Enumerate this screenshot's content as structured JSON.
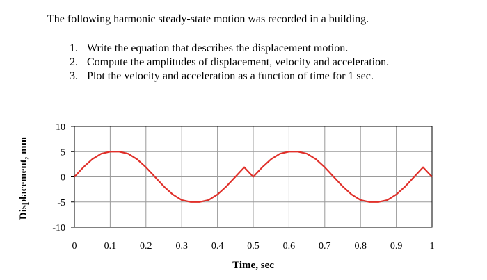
{
  "problem": {
    "intro": "The following harmonic steady-state motion was recorded in a building.",
    "tasks": [
      {
        "num": "1.",
        "text": "Write the equation that describes the displacement motion."
      },
      {
        "num": "2.",
        "text": "Compute the amplitudes of displacement, velocity and acceleration."
      },
      {
        "num": "3.",
        "text": "Plot the velocity and acceleration as a function of time for 1 sec."
      }
    ]
  },
  "chart_data": {
    "type": "line",
    "title": "",
    "xlabel": "Time, sec",
    "ylabel": "Displacement, mm",
    "xlim": [
      0,
      1
    ],
    "ylim": [
      -10,
      10
    ],
    "xticks": [
      0,
      0.1,
      0.2,
      0.3,
      0.4,
      0.5,
      0.6,
      0.7,
      0.8,
      0.9,
      1
    ],
    "xtick_labels": [
      "0",
      "0.1",
      "0.2",
      "0.3",
      "0.4",
      "0.5",
      "0.6",
      "0.7",
      "0.8",
      "0.9",
      "1"
    ],
    "yticks": [
      10,
      5,
      0,
      -5,
      -10
    ],
    "ytick_labels": [
      "10",
      "5",
      "0",
      "-5",
      "-10"
    ],
    "grid": true,
    "legend": "none",
    "line_color": "#e0302a",
    "series": [
      {
        "x": [
          0,
          0.025,
          0.05,
          0.075,
          0.1,
          0.125,
          0.15,
          0.175,
          0.2,
          0.225,
          0.25,
          0.275,
          0.3,
          0.325,
          0.35,
          0.375,
          0.4,
          0.425,
          0.45,
          0.475,
          0.5,
          0.525,
          0.55,
          0.575,
          0.6,
          0.625,
          0.65,
          0.675,
          0.7,
          0.725,
          0.75,
          0.775,
          0.8,
          0.825,
          0.85,
          0.875,
          0.9,
          0.925,
          0.95,
          0.975,
          1
        ],
        "y": [
          0,
          1.9,
          3.5,
          4.6,
          5.0,
          5.0,
          4.6,
          3.5,
          1.9,
          0,
          -1.9,
          -3.5,
          -4.6,
          -5.0,
          -5.0,
          -4.6,
          -3.5,
          -1.9,
          0,
          1.9,
          0,
          1.9,
          3.5,
          4.6,
          5.0,
          5.0,
          4.6,
          3.5,
          1.9,
          0,
          -1.9,
          -3.5,
          -4.6,
          -5.0,
          -5.0,
          -4.6,
          -3.5,
          -1.9,
          0,
          1.9,
          0
        ]
      }
    ]
  }
}
